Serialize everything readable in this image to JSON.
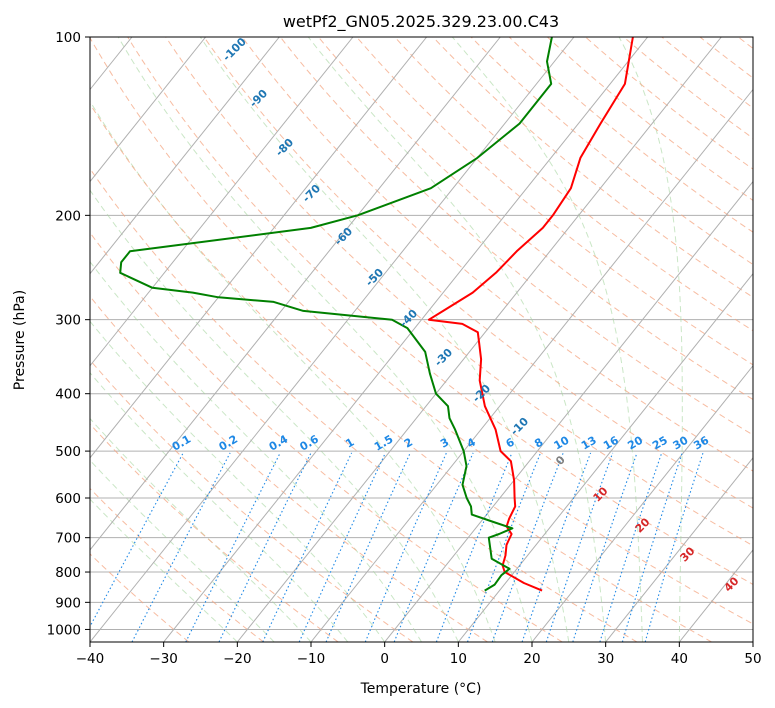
{
  "chart_data": {
    "type": "skew-t",
    "title": "wetPf2_GN05.2025.329.23.00.C43",
    "xlabel": "Temperature (°C)",
    "ylabel": "Pressure (hPa)",
    "xlim": [
      -40,
      50
    ],
    "ylim": [
      1050,
      100
    ],
    "y_scale": "log",
    "grid": true,
    "x_ticks": [
      -40,
      -30,
      -20,
      -10,
      0,
      10,
      20,
      30,
      40,
      50
    ],
    "y_ticks": [
      1000,
      900,
      800,
      700,
      600,
      500,
      400,
      300,
      200,
      100
    ],
    "y_tick_labels": [
      "1000",
      "900",
      "800",
      "700",
      "600",
      "500",
      "400",
      "300",
      "200",
      "100"
    ],
    "x_tick_labels": [
      "−40",
      "−30",
      "−20",
      "−10",
      "0",
      "10",
      "20",
      "30",
      "40",
      "50"
    ],
    "series": [
      {
        "color": "#ff0000",
        "points": [
          [
            860,
            15.8
          ],
          [
            835,
            12.5
          ],
          [
            800,
            8.7
          ],
          [
            780,
            7.7
          ],
          [
            750,
            7.0
          ],
          [
            720,
            6.0
          ],
          [
            690,
            5.5
          ],
          [
            670,
            4.0
          ],
          [
            650,
            3.5
          ],
          [
            620,
            3.0
          ],
          [
            600,
            2.0
          ],
          [
            560,
            0.0
          ],
          [
            520,
            -2.5
          ],
          [
            500,
            -5.0
          ],
          [
            460,
            -8.0
          ],
          [
            420,
            -12.0
          ],
          [
            380,
            -15.5
          ],
          [
            350,
            -17.6
          ],
          [
            330,
            -19.5
          ],
          [
            315,
            -21.0
          ],
          [
            305,
            -24.0
          ],
          [
            300,
            -29.0
          ],
          [
            290,
            -28.0
          ],
          [
            270,
            -26.0
          ],
          [
            250,
            -25.0
          ],
          [
            230,
            -24.5
          ],
          [
            210,
            -23.5
          ],
          [
            200,
            -23.5
          ],
          [
            180,
            -24.0
          ],
          [
            160,
            -26.0
          ],
          [
            140,
            -27.0
          ],
          [
            120,
            -28.0
          ],
          [
            100,
            -32.0
          ]
        ]
      },
      {
        "color": "#008000",
        "points": [
          [
            860,
            8.0
          ],
          [
            840,
            8.7
          ],
          [
            810,
            8.6
          ],
          [
            790,
            9.0
          ],
          [
            760,
            5.5
          ],
          [
            700,
            2.8
          ],
          [
            690,
            3.8
          ],
          [
            675,
            5.0
          ],
          [
            660,
            2.0
          ],
          [
            640,
            -2.0
          ],
          [
            620,
            -3.0
          ],
          [
            600,
            -4.5
          ],
          [
            570,
            -6.5
          ],
          [
            530,
            -8.0
          ],
          [
            500,
            -10.0
          ],
          [
            460,
            -13.5
          ],
          [
            440,
            -15.5
          ],
          [
            420,
            -17.0
          ],
          [
            400,
            -20.0
          ],
          [
            370,
            -23.0
          ],
          [
            340,
            -26.0
          ],
          [
            310,
            -31.0
          ],
          [
            300,
            -34.0
          ],
          [
            290,
            -47.0
          ],
          [
            280,
            -52.0
          ],
          [
            275,
            -60.0
          ],
          [
            270,
            -64.0
          ],
          [
            265,
            -70.0
          ],
          [
            250,
            -76.0
          ],
          [
            240,
            -77.0
          ],
          [
            230,
            -77.0
          ],
          [
            210,
            -55.0
          ],
          [
            200,
            -50.0
          ],
          [
            180,
            -43.0
          ],
          [
            160,
            -40.0
          ],
          [
            140,
            -38.0
          ],
          [
            120,
            -38.0
          ],
          [
            110,
            -41.0
          ],
          [
            100,
            -43.0
          ]
        ]
      }
    ],
    "dry_adiabat_labels": [
      "-100",
      "-90",
      "-80",
      "-70",
      "-60",
      "-50",
      "-40",
      "-30",
      "-20",
      "-10",
      "0",
      "10",
      "20",
      "30",
      "40"
    ],
    "mixing_ratio_labels": [
      "0.1",
      "0.2",
      "0.4",
      "0.6",
      "1",
      "1.5",
      "2",
      "3",
      "4",
      "6",
      "8",
      "10",
      "13",
      "16",
      "20",
      "25",
      "30",
      "36"
    ]
  },
  "colors": {
    "temperature": "#ff0000",
    "dewpoint": "#008000",
    "grid": "#b0b0b0",
    "dry_adiabat": "#f4a582",
    "moist_adiabat": "#a6d5a0",
    "mixing_ratio": "#1e88e5",
    "label_cold": "#1f77b4",
    "label_warm": "#d62728"
  }
}
